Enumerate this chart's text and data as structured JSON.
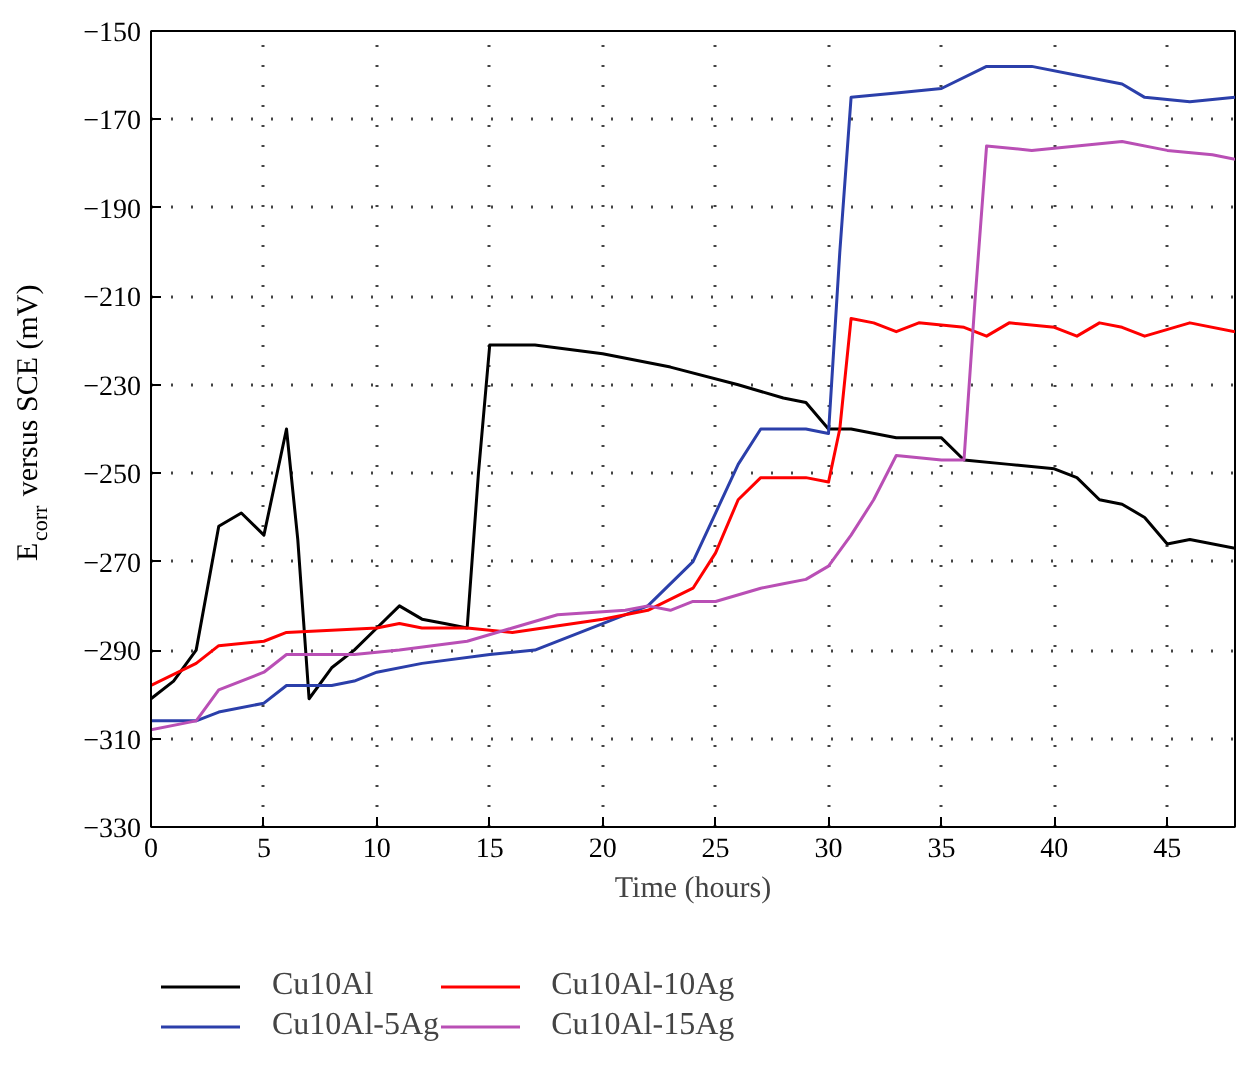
{
  "chart_data": {
    "type": "line",
    "xlabel": "Time (hours)",
    "ylabel": "E$_{corr}$ versus SCE (mV)",
    "xlim": [
      0,
      48
    ],
    "xticks": [
      0,
      5,
      10,
      15,
      20,
      25,
      30,
      35,
      40,
      45
    ],
    "ylim": [
      -330,
      -150
    ],
    "yticks": [
      -330,
      -310,
      -290,
      -270,
      -250,
      -230,
      -210,
      -190,
      -170,
      -150
    ],
    "grid": true,
    "legend": "bottom",
    "line_style": "solid",
    "series": [
      {
        "name": "Cu10Al",
        "color": "#000000",
        "x": [
          0,
          1,
          2,
          3,
          4,
          5,
          6,
          6.5,
          7,
          8,
          9,
          10,
          11,
          12,
          13,
          14,
          14.5,
          15,
          17,
          20,
          23,
          26,
          28,
          29,
          30,
          31,
          33,
          35,
          36,
          38,
          40,
          41,
          42,
          43,
          44,
          45,
          46,
          48
        ],
        "values": [
          -301,
          -297,
          -290,
          -262,
          -259,
          -264,
          -240,
          -265,
          -301,
          -294,
          -290,
          -285,
          -280,
          -283,
          -284,
          -285,
          -250,
          -221,
          -221,
          -223,
          -226,
          -230,
          -233,
          -234,
          -240,
          -240,
          -242,
          -242,
          -247,
          -248,
          -249,
          -251,
          -256,
          -257,
          -260,
          -266,
          -265,
          -267
        ]
      },
      {
        "name": "Cu10Al-5Ag",
        "color": "#2b3faa",
        "x": [
          0,
          2,
          3,
          5,
          6,
          8,
          9,
          10,
          12,
          15,
          17,
          20,
          22,
          24,
          25,
          26,
          27,
          29,
          30,
          30.5,
          31,
          33,
          35,
          37,
          39,
          41,
          43,
          44,
          46,
          48
        ],
        "values": [
          -306,
          -306,
          -304,
          -302,
          -298,
          -298,
          -297,
          -295,
          -293,
          -291,
          -290,
          -284,
          -280,
          -270,
          -259,
          -248,
          -240,
          -240,
          -241,
          -200,
          -165,
          -164,
          -163,
          -158,
          -158,
          -160,
          -162,
          -165,
          -166,
          -165
        ]
      },
      {
        "name": "Cu10Al-10Ag",
        "color": "#ff0000",
        "x": [
          0,
          2,
          3,
          5,
          6,
          10,
          11,
          12,
          14,
          16,
          20,
          22,
          24,
          25,
          26,
          27,
          29,
          30,
          30.5,
          31,
          32,
          33,
          34,
          36,
          37,
          38,
          40,
          41,
          42,
          43,
          44,
          46,
          48
        ],
        "values": [
          -298,
          -293,
          -289,
          -288,
          -286,
          -285,
          -284,
          -285,
          -285,
          -286,
          -283,
          -281,
          -276,
          -268,
          -256,
          -251,
          -251,
          -252,
          -240,
          -215,
          -216,
          -218,
          -216,
          -217,
          -219,
          -216,
          -217,
          -219,
          -216,
          -217,
          -219,
          -216,
          -218
        ]
      },
      {
        "name": "Cu10Al-15Ag",
        "color": "#b94fb5",
        "x": [
          0,
          2,
          3,
          5,
          6,
          9,
          11,
          14,
          16,
          18,
          21,
          22,
          23,
          24,
          25,
          27,
          28,
          29,
          30,
          31,
          32,
          33,
          35,
          36,
          36.5,
          37,
          39,
          41,
          43,
          45,
          47,
          48
        ],
        "values": [
          -308,
          -306,
          -299,
          -295,
          -291,
          -291,
          -290,
          -288,
          -285,
          -282,
          -281,
          -280,
          -281,
          -279,
          -279,
          -276,
          -275,
          -274,
          -271,
          -264,
          -256,
          -246,
          -247,
          -247,
          -210,
          -176,
          -177,
          -176,
          -175,
          -177,
          -178,
          -179
        ]
      }
    ]
  }
}
